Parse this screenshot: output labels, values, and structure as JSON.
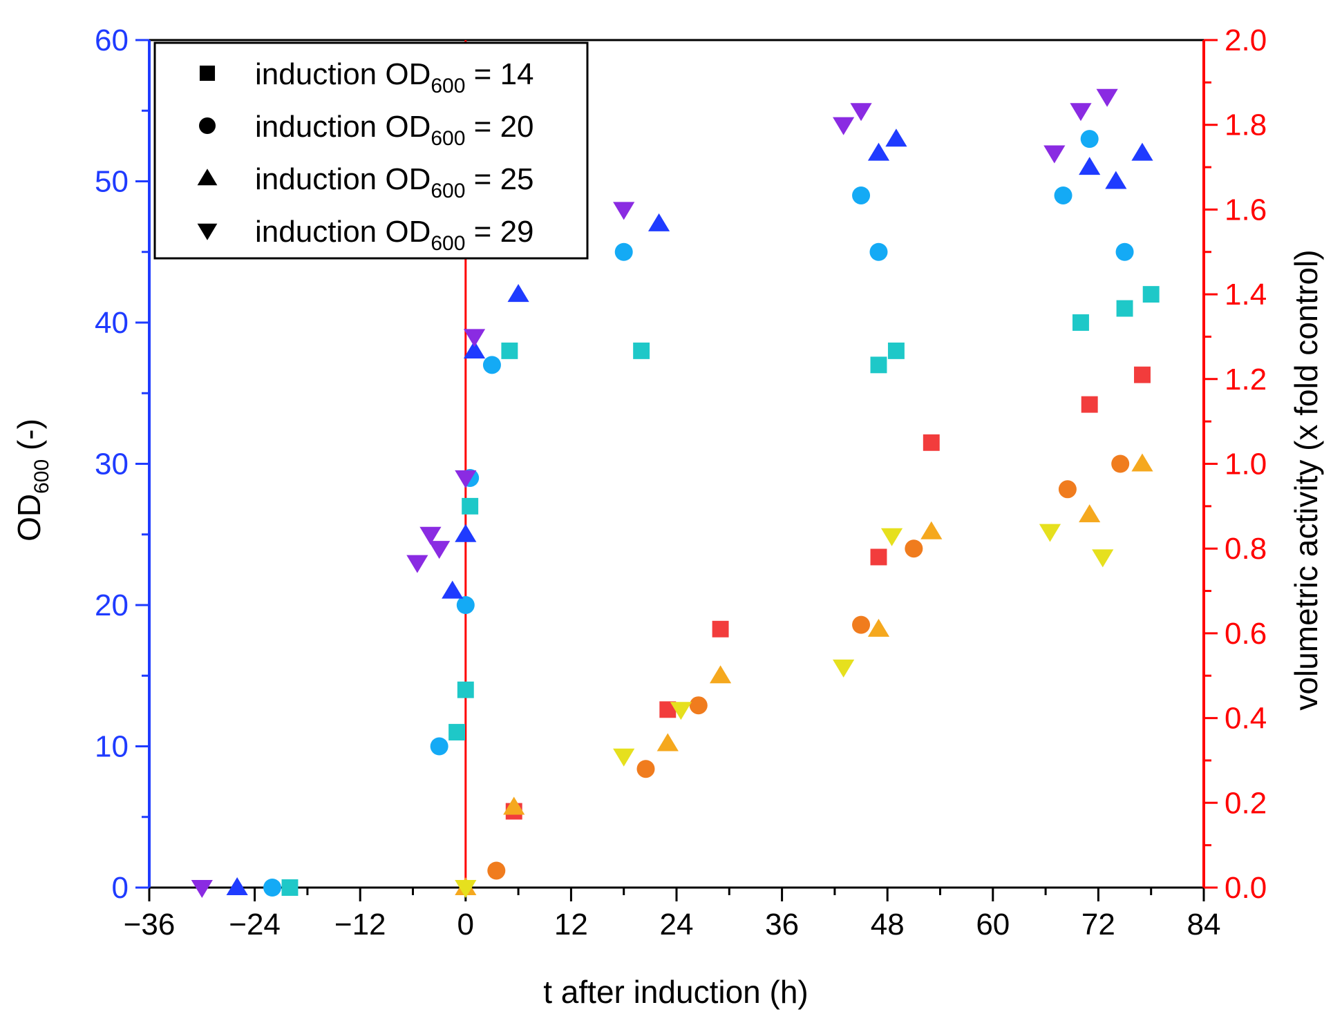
{
  "chart_data": {
    "type": "scatter",
    "title": "",
    "xlabel": "t after induction (h)",
    "ylabel_left": {
      "base": "OD",
      "sub": "600",
      "suffix": " (-)"
    },
    "ylabel_right": "volumetric activity (x fold control)",
    "xlim": [
      -36,
      84
    ],
    "ylim_left": [
      0,
      60
    ],
    "ylim_right": [
      0,
      2.0
    ],
    "x_ticks": [
      -36,
      -24,
      -12,
      0,
      12,
      24,
      36,
      48,
      60,
      72,
      84
    ],
    "x_tick_labels": [
      "−36",
      "−24",
      "−12",
      "0",
      "12",
      "24",
      "36",
      "48",
      "60",
      "72",
      "84"
    ],
    "y_left_ticks": [
      0,
      10,
      20,
      30,
      40,
      50,
      60
    ],
    "y_left_tick_labels": [
      "0",
      "10",
      "20",
      "30",
      "40",
      "50",
      "60"
    ],
    "y_right_ticks": [
      0,
      0.2,
      0.4,
      0.6,
      0.8,
      1.0,
      1.2,
      1.4,
      1.6,
      1.8,
      2.0
    ],
    "y_right_tick_labels": [
      "0.0",
      "0.2",
      "0.4",
      "0.6",
      "0.8",
      "1.0",
      "1.2",
      "1.4",
      "1.6",
      "1.8",
      "2.0"
    ],
    "colors": {
      "left_axis": "#1f3bff",
      "right_axis": "#ff0000",
      "induction_line": "#ff0000"
    },
    "induction_line_x": 0,
    "legend": {
      "position": "top-left",
      "entries": [
        {
          "marker": "square",
          "prefix": "induction OD",
          "sub": "600",
          "suffix": " = 14"
        },
        {
          "marker": "circle",
          "prefix": "induction OD",
          "sub": "600",
          "suffix": " = 20"
        },
        {
          "marker": "triangle-up",
          "prefix": "induction OD",
          "sub": "600",
          "suffix": " = 25"
        },
        {
          "marker": "triangle-down",
          "prefix": "induction OD",
          "sub": "600",
          "suffix": " = 29"
        }
      ]
    },
    "series": [
      {
        "name": "OD600, induction OD600 = 14",
        "axis": "left",
        "marker": "square",
        "color": "#1ec8c8",
        "x": [
          -20,
          -1,
          0,
          0.5,
          5,
          20,
          47,
          49,
          70,
          75,
          78
        ],
        "y": [
          0,
          11,
          14,
          27,
          38,
          38,
          37,
          38,
          40,
          41,
          42
        ]
      },
      {
        "name": "OD600, induction OD600 = 20",
        "axis": "left",
        "marker": "circle",
        "color": "#14aaf5",
        "x": [
          -22,
          -3,
          0,
          0.5,
          3,
          18,
          45,
          47,
          68,
          71,
          75
        ],
        "y": [
          0,
          10,
          20,
          29,
          37,
          45,
          49,
          45,
          49,
          53,
          45
        ]
      },
      {
        "name": "OD600, induction OD600 = 25",
        "axis": "left",
        "marker": "triangle-up",
        "color": "#1f3bff",
        "x": [
          -26,
          -1.5,
          0,
          1,
          6,
          22,
          47,
          49,
          71,
          74,
          77
        ],
        "y": [
          0,
          21,
          25,
          38,
          42,
          47,
          52,
          53,
          51,
          50,
          52
        ]
      },
      {
        "name": "OD600, induction OD600 = 29",
        "axis": "left",
        "marker": "triangle-down",
        "color": "#8a2be2",
        "x": [
          -30,
          -5.5,
          -4,
          -3,
          0,
          1,
          18,
          43,
          45,
          67,
          70,
          73
        ],
        "y": [
          0,
          23,
          25,
          24,
          29,
          39,
          48,
          54,
          55,
          52,
          55,
          56
        ]
      },
      {
        "name": "activity, induction OD600 = 14",
        "axis": "right",
        "marker": "square",
        "color": "#f23c3c",
        "x": [
          5.5,
          23,
          29,
          47,
          53,
          71,
          77
        ],
        "y": [
          0.18,
          0.42,
          0.61,
          0.78,
          1.05,
          1.14,
          1.21
        ]
      },
      {
        "name": "activity, induction OD600 = 20",
        "axis": "right",
        "marker": "circle",
        "color": "#f07c1e",
        "x": [
          3.5,
          20.5,
          26.5,
          45,
          51,
          68.5,
          74.5
        ],
        "y": [
          0.04,
          0.28,
          0.43,
          0.62,
          0.8,
          0.94,
          1.0
        ]
      },
      {
        "name": "activity, induction OD600 = 25",
        "axis": "right",
        "marker": "triangle-up",
        "color": "#f5a81e",
        "x": [
          0,
          5.5,
          23,
          29,
          47,
          53,
          71,
          77
        ],
        "y": [
          0.0,
          0.19,
          0.34,
          0.5,
          0.61,
          0.84,
          0.88,
          1.0
        ]
      },
      {
        "name": "activity, induction OD600 = 29",
        "axis": "right",
        "marker": "triangle-down",
        "color": "#e6e01e",
        "x": [
          0,
          18,
          24.5,
          43,
          48.5,
          66.5,
          72.5
        ],
        "y": [
          0.0,
          0.31,
          0.42,
          0.52,
          0.83,
          0.84,
          0.78
        ]
      }
    ]
  }
}
